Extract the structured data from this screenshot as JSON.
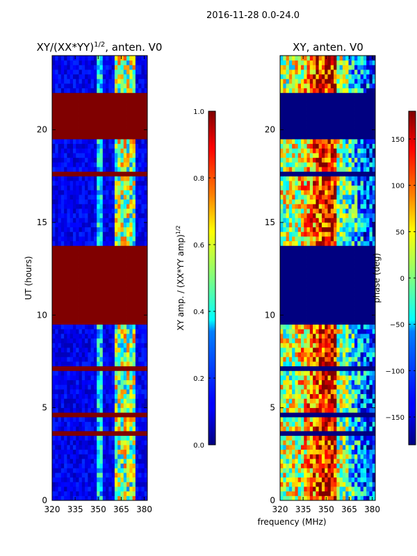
{
  "suptitle": "2016-11-28 0.0-24.0",
  "xlabel_shared": "frequency (MHz)",
  "chart_data": [
    {
      "type": "heatmap",
      "title": "XY/(XX*YY)^1/2, anten. V0",
      "title_main": "XY/(XX*YY)",
      "title_sup": "1/2",
      "title_tail": ", anten. V0",
      "ylabel": "UT (hours)",
      "xlim": [
        320,
        382
      ],
      "ylim": [
        0,
        24
      ],
      "xticks": [
        320,
        335,
        350,
        365,
        380
      ],
      "yticks": [
        0,
        5,
        10,
        15,
        20
      ],
      "colormap": "jet",
      "colorbar": {
        "label": "XY amp. / (XX*YY amp)^1/2",
        "label_main": "XY amp. / (XX*YY amp)",
        "label_sup": "1/2",
        "range": [
          0.0,
          1.0
        ],
        "ticks": [
          "0.0",
          "0.2",
          "0.4",
          "0.6",
          "0.8",
          "1.0"
        ]
      },
      "flagged_time_ranges_value_1": [
        [
          9.6,
          13.7
        ],
        [
          19.5,
          22.1
        ],
        [
          17.5,
          17.8
        ],
        [
          7.1,
          7.2
        ],
        [
          4.55,
          4.65
        ],
        [
          3.55,
          3.65
        ],
        [
          22.25,
          22.35
        ]
      ],
      "bright_freq_band_MHz": [
        361,
        374
      ]
    },
    {
      "type": "heatmap",
      "title": "XY, anten. V0",
      "xlim": [
        320,
        382
      ],
      "ylim": [
        0,
        24
      ],
      "xticks": [
        320,
        335,
        350,
        365,
        380
      ],
      "yticks": [
        0,
        5,
        10,
        15,
        20
      ],
      "colormap": "jet",
      "colorbar": {
        "label": "phase (deg)",
        "range": [
          -180,
          180
        ],
        "ticks": [
          "−150",
          "−100",
          "−50",
          "0",
          "50",
          "100",
          "150"
        ]
      },
      "flagged_time_ranges_value_min": [
        [
          9.6,
          13.7
        ],
        [
          19.5,
          22.1
        ],
        [
          17.5,
          17.8
        ],
        [
          7.1,
          7.2
        ],
        [
          4.55,
          4.65
        ],
        [
          3.55,
          3.65
        ],
        [
          22.25,
          22.35
        ]
      ]
    }
  ]
}
